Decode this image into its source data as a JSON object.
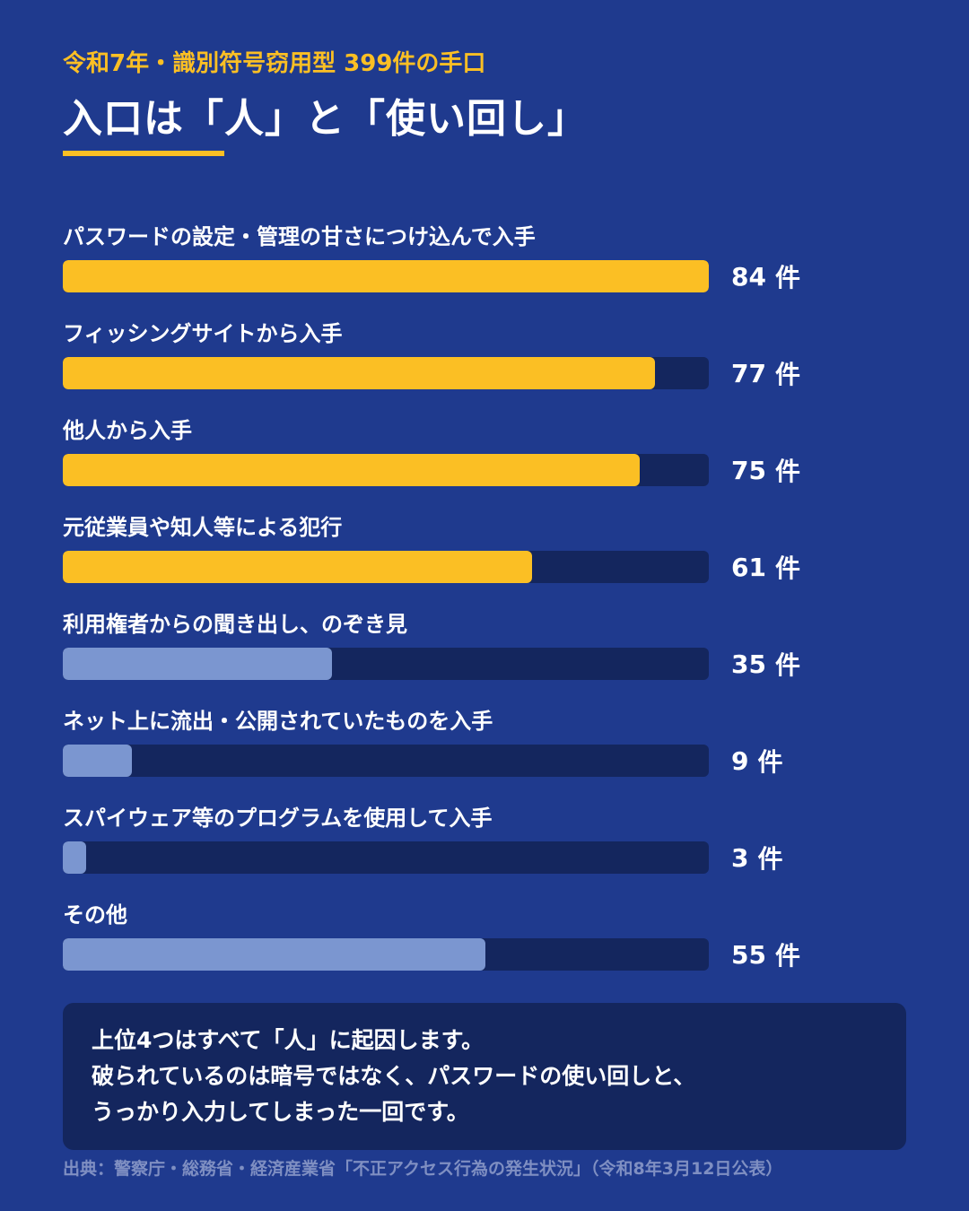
{
  "header": {
    "kicker": "令和7年・識別符号窃用型 399件の手口",
    "title": "入口は「人」と「使い回し」"
  },
  "colors": {
    "background": "#1f3a8e",
    "accent": "#fbbf24",
    "secondary": "#7b96d0",
    "track": "#14265e"
  },
  "chart_data": {
    "type": "bar",
    "orientation": "horizontal",
    "unit": "件",
    "xlim": [
      0,
      84
    ],
    "categories": [
      "パスワードの設定・管理の甘さにつけ込んで入手",
      "フィッシングサイトから入手",
      "他人から入手",
      "元従業員や知人等による犯行",
      "利用権者からの聞き出し、のぞき見",
      "ネット上に流出・公開されていたものを入手",
      "スパイウェア等のプログラムを使用して入手",
      "その他"
    ],
    "values": [
      84,
      77,
      75,
      61,
      35,
      9,
      3,
      55
    ],
    "highlight": [
      true,
      true,
      true,
      true,
      false,
      false,
      false,
      false
    ]
  },
  "note": {
    "lines": [
      "上位4つはすべて「人」に起因します。",
      "破られているのは暗号ではなく、パスワードの使い回しと、",
      "うっかり入力してしまった一回です。"
    ]
  },
  "source": "出典：警察庁・総務省・経済産業省「不正アクセス行為の発生状況」（令和8年3月12日公表）"
}
